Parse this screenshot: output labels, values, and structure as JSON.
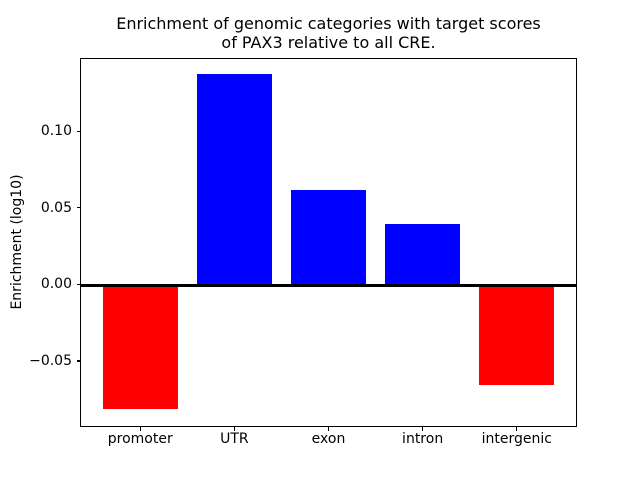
{
  "chart_data": {
    "type": "bar",
    "title": "Enrichment of genomic categories with target scores\nof PAX3 relative to all CRE.",
    "xlabel": "",
    "ylabel": "Enrichment (log10)",
    "categories": [
      "promoter",
      "UTR",
      "exon",
      "intron",
      "intergenic"
    ],
    "values": [
      -0.081,
      0.137,
      0.0613,
      0.0395,
      -0.0655
    ],
    "colors": [
      "#ff0000",
      "#0000ff",
      "#0000ff",
      "#0000ff",
      "#ff0000"
    ],
    "positive_color": "#0000ff",
    "negative_color": "#ff0000",
    "ylim": [
      -0.093,
      0.1477
    ],
    "yticks": [
      -0.05,
      0.0,
      0.05,
      0.1
    ],
    "ytick_labels": [
      "−0.05",
      "0.00",
      "0.05",
      "0.10"
    ],
    "zero_line": true,
    "bar_width_fraction": 0.8,
    "grid": false,
    "legend": null,
    "background_color": "#ffffff",
    "text_color": "#000000"
  }
}
